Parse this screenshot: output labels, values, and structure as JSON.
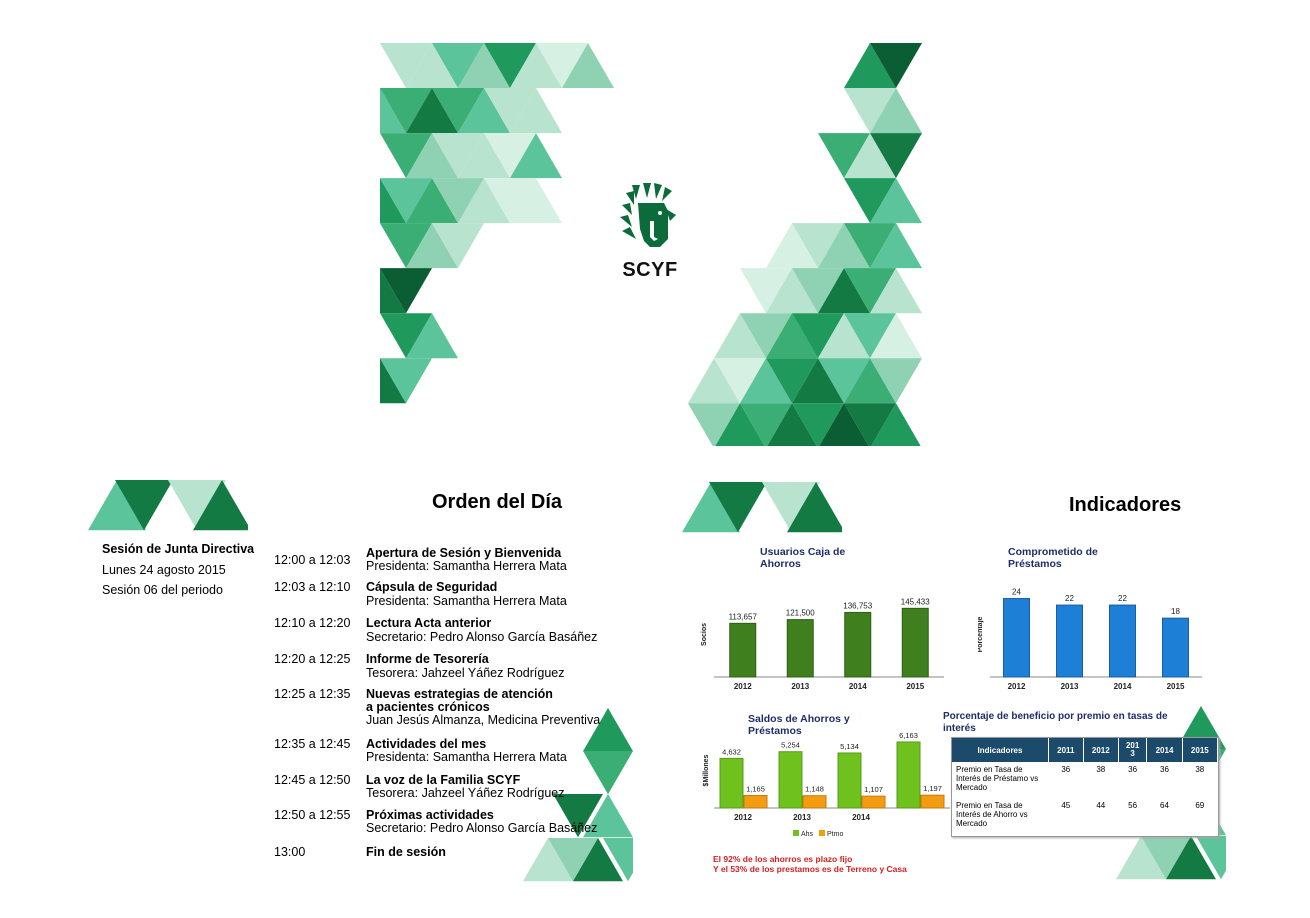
{
  "colors": {
    "dark_green": "#0b6b3a",
    "mid_green": "#1f9a5c",
    "light_green": "#5cc49a",
    "pale_green": "#a8ddc5",
    "bar_green": "#3f7f1d",
    "bar_blue": "#1e7fd6",
    "bar_lime": "#6fc21e",
    "bar_orange": "#f39c12",
    "navy_text": "#1f2d6b",
    "red_text": "#d81f1f",
    "table_header": "#1b4a6b"
  },
  "cover": {
    "logo_icon": "scyf-feather-head-logo",
    "logo_text": "SCYF"
  },
  "agenda": {
    "title": "Orden del Día",
    "session": {
      "name": "Sesión de Junta Directiva",
      "date": "Lunes 24 agosto 2015",
      "number": "Sesión 06 del periodo"
    },
    "items": [
      {
        "time": "12:00 a 12:03",
        "title": "Apertura de Sesión y Bienvenida",
        "sub": "Presidenta: Samantha Herrera Mata"
      },
      {
        "time": "12:03 a 12:10",
        "title": "Cápsula de Seguridad",
        "sub": "Presidenta: Samantha Herrera Mata"
      },
      {
        "time": "12:10 a 12:20",
        "title": "Lectura Acta anterior",
        "sub": "Secretario: Pedro Alonso García Basáñez"
      },
      {
        "time": "12:20 a 12:25",
        "title": "Informe de Tesorería",
        "sub": "Tesorera: Jahzeel Yáñez Rodríguez"
      },
      {
        "time": "12:25 a 12:35",
        "title": "Nuevas estrategias de atención",
        "title2": "a pacientes crónicos",
        "sub": "Juan Jesús Almanza, Medicina Preventiva"
      },
      {
        "time": "12:35 a 12:45",
        "title": "Actividades del mes",
        "sub": "Presidenta: Samantha Herrera Mata"
      },
      {
        "time": "12:45 a 12:50",
        "title": "La voz de la Familia SCYF",
        "sub": "Tesorera: Jahzeel Yáñez Rodríguez"
      },
      {
        "time": "12:50 a 12:55",
        "title": "Próximas actividades",
        "sub": "Secretario: Pedro Alonso García Basáñez"
      },
      {
        "time": "13:00",
        "title": "Fin de sesión",
        "sub": ""
      }
    ]
  },
  "indicators": {
    "title": "Indicadores",
    "note_line1": "El 92% de los ahorros es plazo fijo",
    "note_line2": "Y el 53% de los prestamos es de Terreno y  Casa",
    "table": {
      "title": "Porcentaje de beneficio por premio en tasas de interés",
      "headers": [
        "Indicadores",
        "2011",
        "2012",
        "201\n3",
        "2014",
        "2015"
      ],
      "rows": [
        {
          "label": "Premio en Tasa de Interés de Préstamo vs Mercado",
          "values": [
            "36",
            "38",
            "36",
            "36",
            "38"
          ]
        },
        {
          "label": "Premio en Tasa de Interés de Ahorro vs Mercado",
          "values": [
            "45",
            "44",
            "56",
            "64",
            "69"
          ]
        }
      ]
    }
  },
  "chart_data": [
    {
      "type": "bar",
      "title": "Usuarios Caja de Ahorros",
      "ylabel": "Socios",
      "categories": [
        "2012",
        "2013",
        "2014",
        "2015"
      ],
      "values": [
        113657,
        121500,
        136753,
        145433
      ],
      "value_labels": [
        "113,657",
        "121,500",
        "136,753",
        "145,433"
      ],
      "ylim": [
        0,
        180000
      ],
      "color": "#3f7f1d"
    },
    {
      "type": "bar",
      "title": "Comprometido de Préstamos",
      "ylabel": "Porcentaje",
      "categories": [
        "2012",
        "2013",
        "2014",
        "2015"
      ],
      "values": [
        24,
        22,
        22,
        18
      ],
      "value_labels": [
        "24",
        "22",
        "22",
        "18"
      ],
      "ylim": [
        0,
        26
      ],
      "color": "#1e7fd6"
    },
    {
      "type": "bar",
      "title": "Saldos de Ahorros y Préstamos",
      "ylabel": "$Millones",
      "categories": [
        "2012",
        "2013",
        "2014",
        ""
      ],
      "series": [
        {
          "name": "Ahs",
          "values": [
            4632,
            5254,
            5134,
            6163
          ],
          "value_labels": [
            "4,632",
            "5,254",
            "5,134",
            "6,163"
          ],
          "color": "#6fc21e"
        },
        {
          "name": "Ptmo",
          "values": [
            1165,
            1148,
            1107,
            1197
          ],
          "value_labels": [
            "1,165",
            "1,148",
            "1,107",
            "1,197"
          ],
          "color": "#f39c12"
        }
      ],
      "ylim": [
        0,
        7000
      ],
      "legend": "bottom"
    }
  ]
}
